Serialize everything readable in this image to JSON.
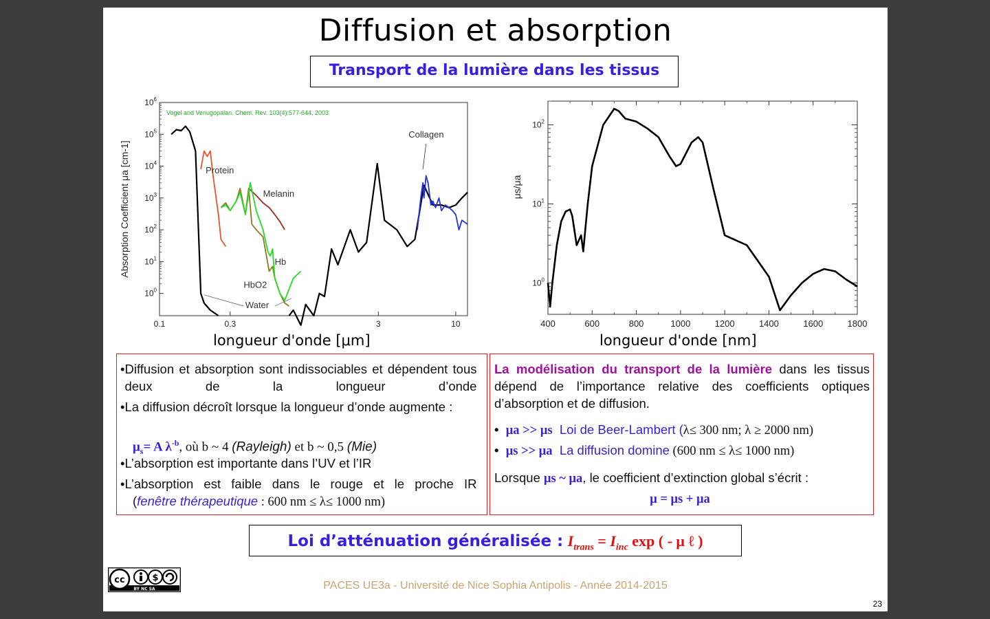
{
  "slide": {
    "title": "Diffusion et absorption",
    "subtitle": "Transport de la lumière dans les tissus",
    "footer": "PACES UE3a - Université de Nice Sophia Antipolis - Année 2014-2015",
    "page_number": "23",
    "license_badge": "BY NC SA"
  },
  "chart_data": [
    {
      "type": "line",
      "scale": "log-log",
      "ylabel": "Absorption Coefficient μa [cm-1]",
      "xlabel": "longueur d'onde [μm]",
      "citation": "Vogel and Venugopalan. Chem. Rev. 103(4):577-644, 2003",
      "xlim": [
        0.1,
        12
      ],
      "ylim": [
        0.2,
        1000000
      ],
      "x_ticks": [
        "0.1",
        "0.3",
        "3",
        "10"
      ],
      "y_ticks": [
        "10^0",
        "10^1",
        "10^2",
        "10^3",
        "10^4",
        "10^5",
        "10^6"
      ],
      "series": [
        {
          "name": "Water",
          "color": "#000000",
          "x": [
            0.12,
            0.13,
            0.14,
            0.15,
            0.16,
            0.175,
            0.19,
            0.2,
            0.22,
            0.25
          ],
          "y": [
            100000,
            140000,
            130000,
            180000,
            120000,
            30000,
            1,
            0.5,
            0.3,
            0.2
          ]
        },
        {
          "name": "Water",
          "color": "#000000",
          "x": [
            0.75,
            0.8,
            0.9,
            0.97,
            1.1,
            1.2,
            1.3,
            1.45,
            1.6,
            1.94,
            2.2,
            2.5,
            2.95,
            3.3,
            4.0,
            4.7,
            5.3,
            6.1,
            7.0,
            8.0,
            9.0,
            10.0,
            11.0,
            12.0
          ],
          "y": [
            0.2,
            0.3,
            0.1,
            0.45,
            0.2,
            1,
            0.8,
            25,
            8,
            100,
            20,
            40,
            12000,
            200,
            100,
            30,
            50,
            2500,
            600,
            600,
            500,
            600,
            1000,
            1500
          ]
        },
        {
          "name": "Protein",
          "color": "#e8532a",
          "x": [
            0.19,
            0.2,
            0.21,
            0.22,
            0.23,
            0.25,
            0.26,
            0.28
          ],
          "y": [
            8000,
            30000,
            20000,
            30000,
            5000,
            300,
            50,
            30
          ]
        },
        {
          "name": "Melanin",
          "color": "#9a2a2a",
          "x": [
            0.4,
            0.45,
            0.5,
            0.55,
            0.6,
            0.65,
            0.7
          ],
          "y": [
            2000,
            1200,
            700,
            500,
            300,
            180,
            100
          ]
        },
        {
          "name": "Hb",
          "color": "#8a7a20",
          "x": [
            0.26,
            0.28,
            0.3,
            0.33,
            0.35,
            0.38,
            0.4,
            0.42,
            0.45,
            0.5,
            0.55,
            0.58,
            0.6,
            0.65,
            0.7,
            0.75
          ],
          "y": [
            500,
            700,
            400,
            800,
            2000,
            300,
            2000,
            150,
            100,
            60,
            5,
            7,
            3,
            1,
            0.5,
            0.4
          ]
        },
        {
          "name": "HbO2",
          "color": "#22dd22",
          "x": [
            0.26,
            0.28,
            0.3,
            0.33,
            0.35,
            0.38,
            0.41,
            0.45,
            0.5,
            0.54,
            0.56,
            0.58,
            0.6,
            0.65,
            0.7,
            0.8,
            0.9
          ],
          "y": [
            500,
            600,
            400,
            800,
            1500,
            300,
            3000,
            400,
            100,
            20,
            15,
            25,
            3,
            1,
            0.6,
            3,
            5
          ]
        },
        {
          "name": "Collagen",
          "color": "#2233dd",
          "x": [
            5.5,
            5.8,
            6.0,
            6.1,
            6.3,
            6.5,
            6.8,
            7.0,
            7.3,
            7.7,
            8.0,
            8.5,
            9.0,
            9.5,
            10.0,
            10.5,
            11.0,
            12.0
          ],
          "y": [
            100,
            1000,
            3000,
            1000,
            5000,
            3000,
            600,
            800,
            500,
            1000,
            400,
            600,
            500,
            400,
            300,
            100,
            200,
            150
          ]
        }
      ],
      "annotations": [
        "Protein",
        "Melanin",
        "Hb",
        "HbO2",
        "Water",
        "Collagen"
      ]
    },
    {
      "type": "line",
      "scale": "log-y",
      "ylabel": "μs/μa",
      "xlabel": "longueur d'onde [nm]",
      "xlim": [
        400,
        1800
      ],
      "ylim": [
        0.4,
        200
      ],
      "x_ticks": [
        "400",
        "600",
        "800",
        "1000",
        "1200",
        "1400",
        "1600",
        "1800"
      ],
      "y_ticks": [
        "10^0",
        "10^1",
        "10^2"
      ],
      "series": [
        {
          "name": "",
          "color": "#000000",
          "x": [
            400,
            410,
            420,
            440,
            460,
            480,
            500,
            510,
            530,
            550,
            560,
            570,
            580,
            600,
            650,
            700,
            720,
            750,
            800,
            850,
            900,
            950,
            980,
            1000,
            1050,
            1080,
            1100,
            1150,
            1200,
            1300,
            1400,
            1450,
            1500,
            1550,
            1600,
            1650,
            1700,
            1750,
            1800
          ],
          "y": [
            1,
            0.5,
            1,
            3,
            6,
            8,
            8.5,
            7,
            3,
            4,
            2.5,
            5,
            10,
            30,
            100,
            160,
            150,
            120,
            110,
            90,
            70,
            40,
            30,
            32,
            60,
            70,
            60,
            15,
            4,
            3,
            1.2,
            0.45,
            0.7,
            1,
            1.3,
            1.5,
            1.4,
            1.1,
            0.9
          ]
        }
      ]
    }
  ],
  "left_box": {
    "b1": "Diffusion et absorption sont indissociables et dépendent tous deux de la longueur d’onde",
    "b2": "La diffusion décroît lorsque la longueur d’onde augmente :",
    "formula_mu": "μ",
    "formula_sub": "s",
    "formula_eq": "= A λ",
    "formula_exp": "-b",
    "formula_rest": ", où b ~ 4 ",
    "rayleigh": "(Rayleigh)",
    "et": " et b ~ 0,5 ",
    "mie": "(Mie)",
    "b3": "L’absorption est importante dans l’UV et l’IR",
    "b4": "L’absorption est faible dans le rouge et le proche IR",
    "paren_open": "(",
    "fenetre": "fenêtre thérapeutique",
    "range": " : 600 nm ≤ λ≤ 1000 nm)"
  },
  "right_box": {
    "heading": "La modélisation du transport de la lumière",
    "heading_rest": " dans les tissus dépend de l’importance relative des coefficients optiques d’absorption et de diffusion.",
    "c1_lhs": "μa >> μs",
    "c1_text": "Loi de Beer-Lambert (",
    "c1_range": "λ≤ 300 nm; λ ≥ 2000 nm)",
    "c2_lhs": "μs >> μa",
    "c2_text": "La diffusion domine",
    "c2_range": " (600 nm ≤ λ≤ 1000 nm)",
    "lorsque": "Lorsque ",
    "cond": "μs ~ μa",
    "lorsque_rest": ", le coefficient d’extinction global s’écrit :",
    "global": "μ = μs + μa"
  },
  "loi": {
    "label": "Loi d’atténuation généralisée :",
    "i_trans": "I",
    "trans_sub": "trans",
    "eq": " = ",
    "i_inc": "I",
    "inc_sub": "inc",
    "exp": " exp ( - μ ℓ )"
  },
  "colors": {
    "accent_blue": "#3a1ee0",
    "accent_purple": "#a0109f",
    "accent_red": "#e01010",
    "box_border": "#e02020"
  }
}
